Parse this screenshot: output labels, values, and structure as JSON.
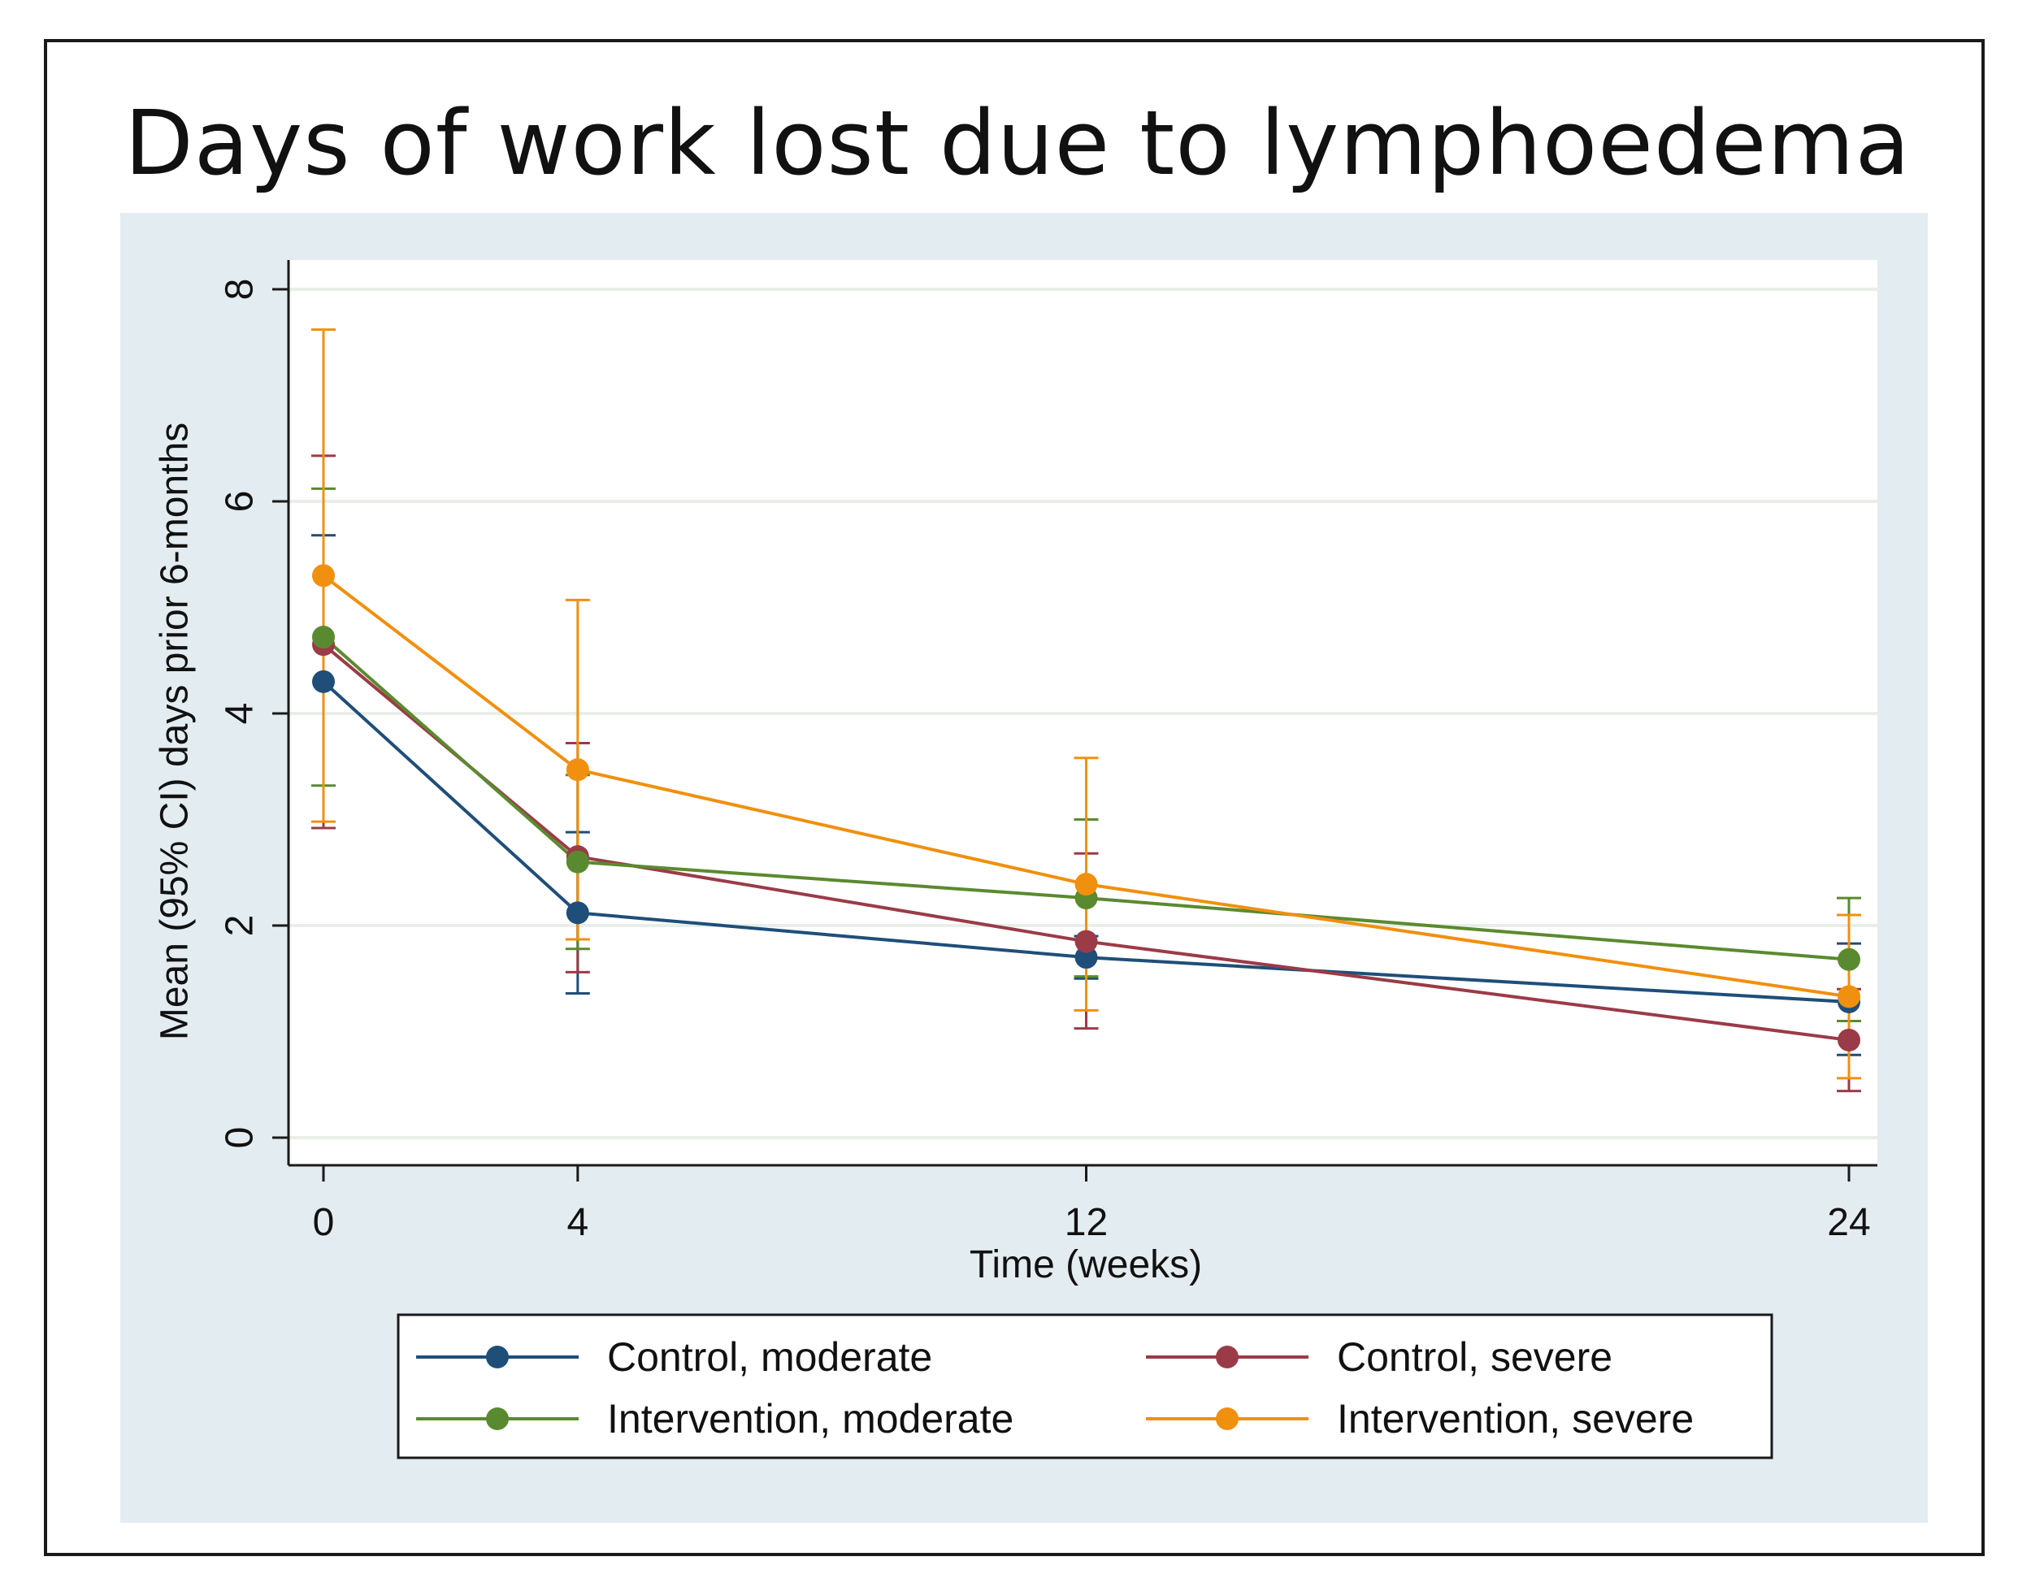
{
  "colors": {
    "outer_bg": "#e3ecf0",
    "plot_bg": "#ffffff",
    "grid": "#e8efe9",
    "axis": "#1a1a1a",
    "legend_border": "#1a1a1a"
  },
  "chart_data": {
    "type": "line",
    "title": "Days of work lost due to lymphoedema",
    "xlabel": "Time (weeks)",
    "ylabel": "Mean (95% CI) days prior 6-months",
    "x": [
      0,
      4,
      12,
      24
    ],
    "x_ticks": [
      "0",
      "4",
      "12",
      "24"
    ],
    "y_ticks": [
      "0",
      "2",
      "4",
      "6",
      "8"
    ],
    "xlim": [
      0,
      24
    ],
    "ylim": [
      0,
      8
    ],
    "grid": true,
    "legend_position": "bottom",
    "series": [
      {
        "name": "Control, moderate",
        "color": "#1f4e79",
        "values": [
          4.3,
          2.12,
          1.7,
          1.28
        ],
        "ci_low": [
          2.92,
          1.36,
          1.5,
          0.78
        ],
        "ci_high": [
          5.68,
          2.88,
          1.9,
          1.83
        ]
      },
      {
        "name": "Control, severe",
        "color": "#9b3b47",
        "values": [
          4.65,
          2.65,
          1.85,
          0.92
        ],
        "ci_low": [
          2.92,
          1.56,
          1.03,
          0.44
        ],
        "ci_high": [
          6.43,
          3.72,
          2.68,
          1.4
        ]
      },
      {
        "name": "Intervention, moderate",
        "color": "#5a8a2f",
        "values": [
          4.72,
          2.6,
          2.26,
          1.68
        ],
        "ci_low": [
          3.32,
          1.78,
          1.52,
          1.1
        ],
        "ci_high": [
          6.12,
          3.42,
          3.0,
          2.26
        ]
      },
      {
        "name": "Intervention, severe",
        "color": "#f0900e",
        "values": [
          5.3,
          3.47,
          2.39,
          1.33
        ],
        "ci_low": [
          2.98,
          1.87,
          1.2,
          0.56
        ],
        "ci_high": [
          7.62,
          5.07,
          3.58,
          2.1
        ]
      }
    ]
  }
}
